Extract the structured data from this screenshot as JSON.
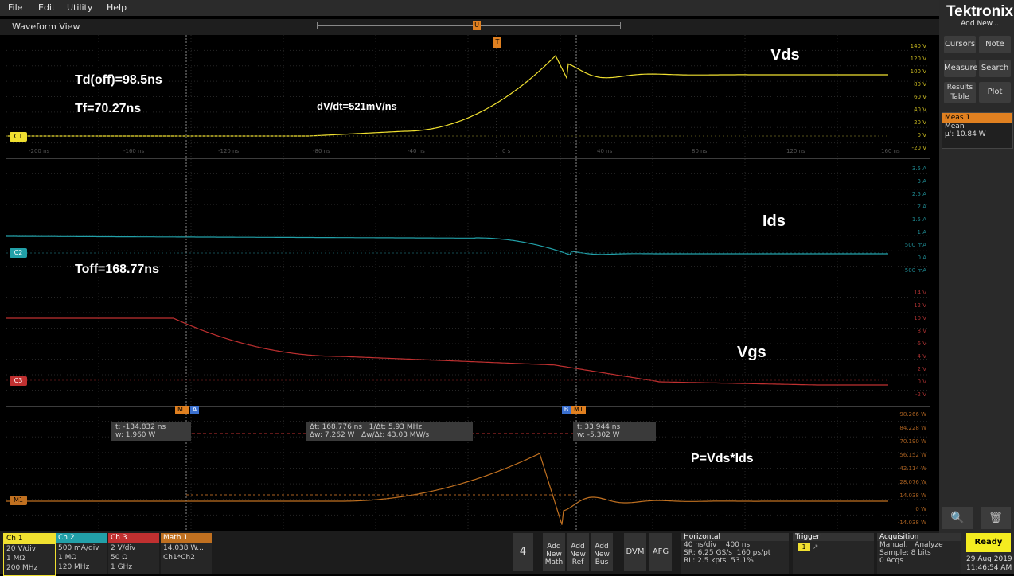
{
  "menu": {
    "file": "File",
    "edit": "Edit",
    "utility": "Utility",
    "help": "Help"
  },
  "view_title": "Waveform View",
  "brand": {
    "logo": "Tektronix",
    "add_new": "Add New..."
  },
  "side_buttons": {
    "cursors": "Cursors",
    "note": "Note",
    "measure": "Measure",
    "search": "Search",
    "results_table": "Results Table",
    "plot": "Plot"
  },
  "meas": {
    "title": "Meas 1",
    "stat": "Mean",
    "value": "µ': 10.84 W"
  },
  "annotations": {
    "vds": "Vds",
    "ids": "Ids",
    "vgs": "Vgs",
    "p": "P=Vds*Ids",
    "tdoff": "Td(off)=98.5ns",
    "tf": "Tf=70.27ns",
    "dvdt": "dV/dt=521mV/ns",
    "toff": "Toff=168.77ns"
  },
  "time_ticks": [
    "-200 ns",
    "-160 ns",
    "-120 ns",
    "-80 ns",
    "-40 ns",
    "0 s",
    "40 ns",
    "80 ns",
    "120 ns",
    "160 ns"
  ],
  "scale_ch1": [
    "140 V",
    "120 V",
    "100 V",
    "80 V",
    "60 V",
    "40 V",
    "20 V",
    "0 V",
    "-20 V"
  ],
  "scale_ch2": [
    "3.5 A",
    "3 A",
    "2.5 A",
    "2 A",
    "1.5 A",
    "1 A",
    "500 mA",
    "0 A",
    "-500 mA"
  ],
  "scale_ch3": [
    "14 V",
    "12 V",
    "10 V",
    "8 V",
    "6 V",
    "4 V",
    "2 V",
    "0 V",
    "-2 V"
  ],
  "scale_m1": [
    "98.266 W",
    "84.228 W",
    "70.190 W",
    "56.152 W",
    "42.114 W",
    "28.076 W",
    "14.038 W",
    "0 W",
    "-14.038 W"
  ],
  "ch_tags": {
    "c1": "C1",
    "c2": "C2",
    "c3": "C3",
    "m1": "M1"
  },
  "cursor_a": {
    "tag": "M1",
    "id": "A",
    "t": "t: -134.832 ns",
    "w": "w: 1.960 W"
  },
  "cursor_b": {
    "tag": "M1",
    "id": "B",
    "t": "t: 33.944 ns",
    "w": "w: -5.302 W"
  },
  "cursor_delta": {
    "dt": "Δt: 168.776 ns",
    "inv": "1/Δt: 5.93 MHz",
    "dw": "Δw: 7.262 W",
    "slope": "Δw/Δt: 43.03 MW/s"
  },
  "channels": [
    {
      "name": "Ch 1",
      "l1": "20 V/div",
      "l2": "1 MΩ",
      "l3": "200 MHz",
      "color": "#f0e030"
    },
    {
      "name": "Ch 2",
      "l1": "500 mA/div",
      "l2": "1 MΩ",
      "l3": "120 MHz",
      "color": "#22a0a8"
    },
    {
      "name": "Ch 3",
      "l1": "2 V/div",
      "l2": "50 Ω",
      "l3": "1 GHz",
      "color": "#c03030"
    },
    {
      "name": "Math 1",
      "l1": "14.038 W...",
      "l2": "Ch1*Ch2",
      "l3": "",
      "color": "#c07020"
    }
  ],
  "bottom_buttons": {
    "n4": "4",
    "add_math": "Add New Math",
    "add_ref": "Add New Ref",
    "add_bus": "Add New Bus",
    "dvm": "DVM",
    "afg": "AFG"
  },
  "horizontal": {
    "title": "Horizontal",
    "div": "40 ns/div",
    "dur": "400 ns",
    "sr": "SR: 6.25 GS/s",
    "pt": "160 ps/pt",
    "rl": "RL: 2.5 kpts",
    "pct": "53.1%"
  },
  "trigger": {
    "title": "Trigger",
    "ch": "1"
  },
  "acquisition": {
    "title": "Acquisition",
    "mode": "Manual,",
    "analyze": "Analyze",
    "sample": "Sample: 8 bits",
    "acqs": "0 Acqs"
  },
  "status": {
    "ready": "Ready",
    "date": "29 Aug 2019",
    "time": "11:46:54 AM"
  },
  "colors": {
    "ch1": "#f0e030",
    "ch2": "#22a0a8",
    "ch3": "#c03030",
    "math": "#c07020"
  },
  "trace_markers": {
    "trigger": "T",
    "u": "U"
  }
}
